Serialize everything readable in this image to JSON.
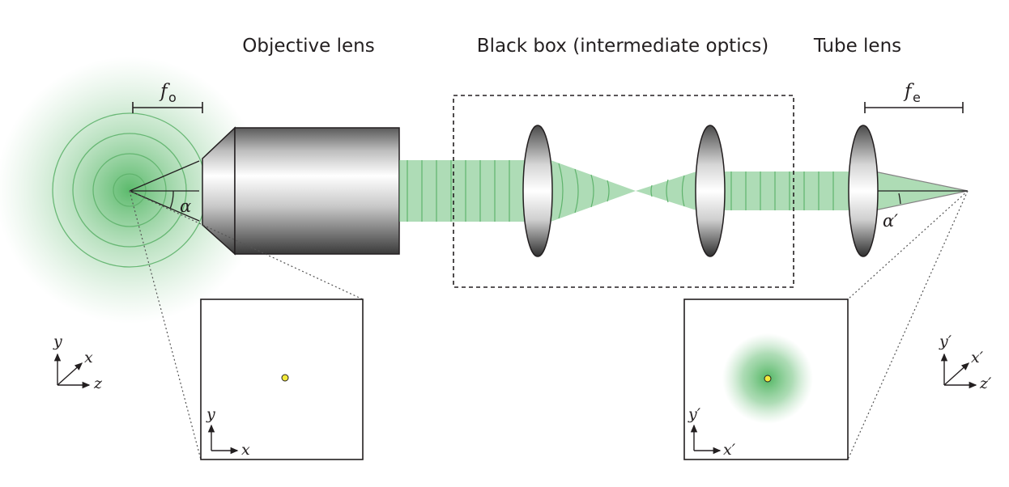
{
  "labels": {
    "objective_lens": "Objective lens",
    "black_box": "Black box (intermediate optics)",
    "tube_lens": "Tube lens",
    "f_objective": "f",
    "f_objective_sub": "o",
    "f_eyepiece": "f",
    "f_eyepiece_sub": "e",
    "alpha": "α",
    "alpha_prime": "α′"
  },
  "axes_object": {
    "y": "y",
    "x": "x",
    "z": "z"
  },
  "axes_image": {
    "y": "y′",
    "x": "x′",
    "z": "z′"
  },
  "inset_object": {
    "y": "y",
    "x": "x"
  },
  "inset_image": {
    "y": "y′",
    "x": "x′"
  },
  "colors": {
    "beam_green": "#6cc07a",
    "beam_line": "#5fb36c",
    "glow_green": "#3fae52",
    "point_yellow": "#f3ea3c",
    "outline": "#231f20"
  }
}
